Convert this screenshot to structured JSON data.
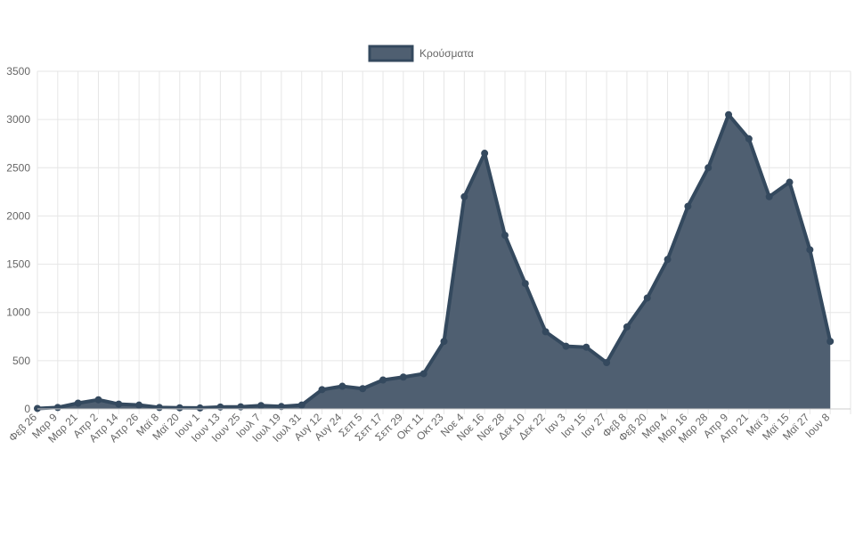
{
  "chart_data": {
    "type": "area",
    "title": "",
    "xlabel": "",
    "ylabel": "",
    "legend": {
      "label": "Κρούσματα",
      "position": "top"
    },
    "colors": {
      "fill": "#4f5f71",
      "stroke": "#34495e",
      "grid": "#e6e6e6",
      "tick_text": "#666666"
    },
    "grid": true,
    "ylim": [
      0,
      3500
    ],
    "y_ticks": [
      "0",
      "500",
      "1000",
      "1500",
      "2000",
      "2500",
      "3000",
      "3500"
    ],
    "x_tick_labels": [
      "Φεβ 26",
      "Μαρ 9",
      "Μαρ 21",
      "Απρ 2",
      "Απρ 14",
      "Απρ 26",
      "Μαϊ 8",
      "Μαϊ 20",
      "Ιουν 1",
      "Ιουν 13",
      "Ιουν 25",
      "Ιουλ 7",
      "Ιουλ 19",
      "Ιουλ 31",
      "Αυγ 12",
      "Αυγ 24",
      "Σεπ 5",
      "Σεπ 17",
      "Σεπ 29",
      "Οκτ 11",
      "Οκτ 23",
      "Νοε 4",
      "Νοε 16",
      "Νοε 28",
      "Δεκ 10",
      "Δεκ 22",
      "Ιαν 3",
      "Ιαν 15",
      "Ιαν 27",
      "Φεβ 8",
      "Φεβ 20",
      "Μαρ 4",
      "Μαρ 16",
      "Μαρ 28",
      "Απρ 9",
      "Απρ 21",
      "Μαϊ 3",
      "Μαϊ 15",
      "Μαϊ 27",
      "Ιουν 8"
    ],
    "series": [
      {
        "name": "Κρούσματα",
        "x": [
          "Φεβ 26",
          "Μαρ 9",
          "Μαρ 21",
          "Απρ 2",
          "Απρ 14",
          "Απρ 26",
          "Μαϊ 8",
          "Μαϊ 20",
          "Ιουν 1",
          "Ιουν 13",
          "Ιουν 25",
          "Ιουλ 7",
          "Ιουλ 19",
          "Ιουλ 31",
          "Αυγ 12",
          "Αυγ 24",
          "Σεπ 5",
          "Σεπ 17",
          "Σεπ 29",
          "Οκτ 11",
          "Οκτ 23",
          "Νοε 4",
          "Νοε 16",
          "Νοε 28",
          "Δεκ 10",
          "Δεκ 22",
          "Ιαν 3",
          "Ιαν 15",
          "Ιαν 27",
          "Φεβ 8",
          "Φεβ 20",
          "Μαρ 4",
          "Μαρ 16",
          "Μαρ 28",
          "Απρ 9",
          "Απρ 21",
          "Μαϊ 3",
          "Μαϊ 15",
          "Μαϊ 27",
          "Ιουν 8"
        ],
        "values": [
          5,
          15,
          60,
          95,
          50,
          40,
          15,
          12,
          10,
          20,
          22,
          35,
          25,
          40,
          200,
          235,
          210,
          300,
          330,
          365,
          700,
          2200,
          2650,
          1800,
          1300,
          800,
          650,
          640,
          480,
          850,
          1150,
          1550,
          2100,
          2500,
          3050,
          2800,
          2200,
          2350,
          1650,
          700
        ]
      }
    ]
  }
}
